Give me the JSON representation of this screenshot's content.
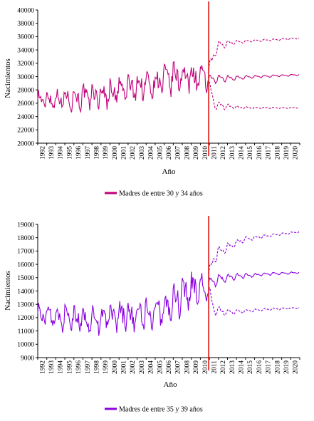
{
  "chart_data": [
    {
      "type": "line",
      "xlabel": "Año",
      "ylabel": "Nacimientos",
      "ylim": [
        20000,
        40000
      ],
      "yticks": [
        20000,
        22000,
        24000,
        26000,
        28000,
        30000,
        32000,
        34000,
        36000,
        38000,
        40000
      ],
      "xticks": [
        "1992",
        "1993",
        "1994",
        "1995",
        "1996",
        "1997",
        "1998",
        "1999",
        "2000",
        "2001",
        "2002",
        "2003",
        "2004",
        "2005",
        "2006",
        "2007",
        "2008",
        "2009",
        "2010",
        "2011",
        "2012",
        "2013",
        "2014",
        "2015",
        "2016",
        "2017",
        "2018",
        "2019",
        "2020"
      ],
      "xrange": [
        1992,
        2021
      ],
      "forecast_start": 2010.92,
      "color": "#c0007a",
      "vline_color": "#e00000",
      "legend_position": "bottom-center",
      "series": [
        {
          "name": "Madres de entre 30 y 34 años",
          "kind": "observed",
          "x": [
            1992,
            1994,
            1996,
            1998,
            2000,
            2002,
            2004,
            2006,
            2008,
            2010,
            2010.9
          ],
          "y": [
            26500,
            26600,
            26800,
            27000,
            27500,
            28200,
            28800,
            29400,
            30100,
            29800,
            29500
          ],
          "amplitude": [
            1800,
            1900,
            2000,
            2100,
            2300,
            2600,
            2700,
            2700,
            2600,
            2400,
            2200
          ]
        },
        {
          "kind": "forecast",
          "x": [
            2010.92,
            2012,
            2014,
            2016,
            2018,
            2020,
            2021
          ],
          "y": [
            29500,
            29700,
            29800,
            30000,
            30100,
            30200,
            30300
          ],
          "amplitude": [
            1200,
            900,
            500,
            300,
            250,
            200,
            200
          ]
        },
        {
          "kind": "upper",
          "x": [
            2010.92,
            2011.5,
            2012,
            2013,
            2014,
            2016,
            2018,
            2020,
            2021
          ],
          "y": [
            30500,
            33500,
            34600,
            35000,
            35200,
            35400,
            35500,
            35700,
            35800
          ],
          "amplitude": [
            2000,
            1500,
            1100,
            700,
            400,
            250,
            200,
            200,
            200
          ]
        },
        {
          "kind": "lower",
          "x": [
            2010.92,
            2011.5,
            2012,
            2013,
            2014,
            2016,
            2018,
            2020,
            2021
          ],
          "y": [
            28500,
            26200,
            25700,
            25500,
            25400,
            25300,
            25300,
            25300,
            25400
          ],
          "amplitude": [
            2000,
            1500,
            1000,
            600,
            350,
            200,
            150,
            150,
            150
          ]
        }
      ]
    },
    {
      "type": "line",
      "xlabel": "Año",
      "ylabel": "Nacimientos",
      "ylim": [
        9000,
        19000
      ],
      "yticks": [
        9000,
        10000,
        11000,
        12000,
        13000,
        14000,
        15000,
        16000,
        17000,
        18000,
        19000
      ],
      "xticks": [
        "1992",
        "1993",
        "1994",
        "1995",
        "1996",
        "1997",
        "1998",
        "1999",
        "2000",
        "2001",
        "2002",
        "2003",
        "2004",
        "2005",
        "2006",
        "2007",
        "2008",
        "2009",
        "2010",
        "2011",
        "2012",
        "2013",
        "2014",
        "2015",
        "2016",
        "2017",
        "2018",
        "2019",
        "2020"
      ],
      "xrange": [
        1992,
        2021
      ],
      "forecast_start": 2010.92,
      "color": "#8a00e0",
      "vline_color": "#e00000",
      "legend_position": "bottom-center",
      "series": [
        {
          "name": "Madres de entre 35 y 39 años",
          "kind": "observed",
          "x": [
            1992,
            1994,
            1996,
            1998,
            2000,
            2002,
            2004,
            2006,
            2007,
            2008,
            2009,
            2010,
            2010.9
          ],
          "y": [
            12300,
            12000,
            11900,
            11800,
            12000,
            12200,
            12300,
            12600,
            13100,
            13700,
            14000,
            14200,
            14300
          ],
          "amplitude": [
            900,
            1000,
            1100,
            1100,
            1200,
            1400,
            1400,
            1400,
            1500,
            1500,
            1500,
            1400,
            1300
          ]
        },
        {
          "kind": "forecast",
          "x": [
            2010.92,
            2012,
            2014,
            2016,
            2018,
            2020,
            2021
          ],
          "y": [
            14500,
            14900,
            15100,
            15200,
            15300,
            15350,
            15400
          ],
          "amplitude": [
            800,
            600,
            350,
            200,
            150,
            120,
            100
          ]
        },
        {
          "kind": "upper",
          "x": [
            2010.92,
            2011.5,
            2012,
            2013,
            2014,
            2015,
            2016,
            2018,
            2020,
            2021
          ],
          "y": [
            15000,
            16500,
            16900,
            17300,
            17600,
            17900,
            18000,
            18200,
            18350,
            18450
          ],
          "amplitude": [
            1200,
            900,
            700,
            500,
            350,
            250,
            200,
            150,
            120,
            100
          ]
        },
        {
          "kind": "lower",
          "x": [
            2010.92,
            2011.5,
            2012,
            2013,
            2014,
            2016,
            2018,
            2020,
            2021
          ],
          "y": [
            13800,
            12700,
            12500,
            12400,
            12450,
            12550,
            12650,
            12700,
            12750
          ],
          "amplitude": [
            1200,
            700,
            500,
            350,
            250,
            150,
            120,
            100,
            100
          ]
        }
      ]
    }
  ]
}
